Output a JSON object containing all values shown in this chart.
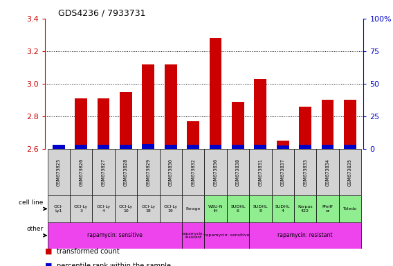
{
  "title": "GDS4236 / 7933731",
  "samples": [
    "GSM673825",
    "GSM673826",
    "GSM673827",
    "GSM673828",
    "GSM673829",
    "GSM673830",
    "GSM673832",
    "GSM673836",
    "GSM673838",
    "GSM673831",
    "GSM673837",
    "GSM673833",
    "GSM673834",
    "GSM673835"
  ],
  "red_values": [
    2.62,
    2.91,
    2.91,
    2.95,
    3.12,
    3.12,
    2.77,
    3.28,
    2.89,
    3.03,
    2.65,
    2.86,
    2.9,
    2.9
  ],
  "blue_heights": [
    0.025,
    0.025,
    0.025,
    0.025,
    0.03,
    0.025,
    0.025,
    0.025,
    0.025,
    0.025,
    0.02,
    0.025,
    0.025,
    0.025
  ],
  "ymin": 2.6,
  "ymax": 3.4,
  "y2min": 0,
  "y2max": 100,
  "yticks": [
    2.6,
    2.8,
    3.0,
    3.2,
    3.4
  ],
  "y2ticks": [
    0,
    25,
    50,
    75,
    100
  ],
  "cell_lines": [
    "OCI-\nLy1",
    "OCI-Ly\n3",
    "OCI-Ly\n4",
    "OCI-Ly\n10",
    "OCI-Ly\n18",
    "OCI-Ly\n19",
    "Farage",
    "WSU-N\nIH",
    "SUDHL\n6",
    "SUDHL\n8",
    "SUDHL\n4",
    "Karpas\n422",
    "Pfeiff\ner",
    "Toledo"
  ],
  "cell_line_colors": [
    "#d3d3d3",
    "#d3d3d3",
    "#d3d3d3",
    "#d3d3d3",
    "#d3d3d3",
    "#d3d3d3",
    "#d3d3d3",
    "#90ee90",
    "#90ee90",
    "#90ee90",
    "#90ee90",
    "#90ee90",
    "#90ee90",
    "#90ee90"
  ],
  "other_groups": [
    {
      "label": "rapamycin: sensitive",
      "start": 0,
      "end": 5,
      "color": "#ee44ee"
    },
    {
      "label": "rapamycin:\nresistant",
      "start": 6,
      "end": 6,
      "color": "#ee44ee"
    },
    {
      "label": "rapamycin: sensitive",
      "start": 7,
      "end": 8,
      "color": "#ee44ee"
    },
    {
      "label": "rapamycin: resistant",
      "start": 9,
      "end": 13,
      "color": "#ee44ee"
    }
  ],
  "bar_color_red": "#cc0000",
  "bar_color_blue": "#0000cc",
  "bar_width": 0.55,
  "grid_color": "#000000",
  "bg_color": "#ffffff",
  "left_label_color": "#cc0000",
  "right_label_color": "#0000cc"
}
